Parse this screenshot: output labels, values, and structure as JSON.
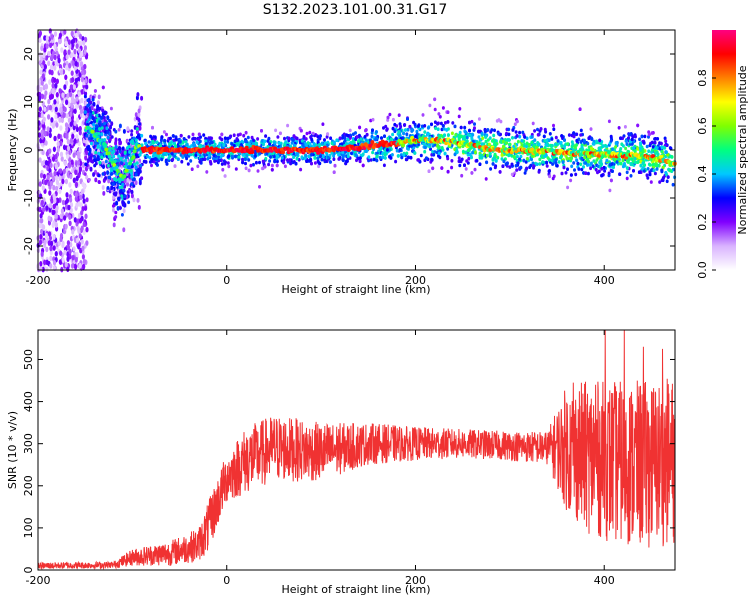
{
  "title": "S132.2023.101.00.31.G17",
  "chart_data": [
    {
      "type": "heatmap",
      "title": "S132.2023.101.00.31.G17",
      "xlabel": "Height of straight line (km)",
      "ylabel": "Frequency (Hz)",
      "xlim": [
        -200,
        475
      ],
      "ylim": [
        -25,
        25
      ],
      "x_ticks": [
        "-200",
        "0",
        "200",
        "400"
      ],
      "y_ticks": [
        "-20",
        "-10",
        "0",
        "10",
        "20"
      ],
      "colorbar": {
        "label": "Normalized spectral amplitude",
        "range": [
          0,
          1
        ],
        "ticks": [
          "0.0",
          "0.2",
          "0.4",
          "0.6",
          "0.8"
        ],
        "colors": [
          "#ffffff",
          "#d9b3ff",
          "#8000ff",
          "#0000ff",
          "#00c8ff",
          "#00ff80",
          "#80ff00",
          "#ffff00",
          "#ff8000",
          "#ff0000",
          "#ff0080"
        ]
      },
      "ridge": {
        "x": [
          -150,
          -140,
          -130,
          -120,
          -110,
          -105,
          -100,
          -95,
          -90,
          -80,
          -60,
          -40,
          -20,
          0,
          50,
          100,
          140,
          180,
          200,
          230,
          260,
          290,
          320,
          360,
          400,
          430,
          460,
          475
        ],
        "y": [
          5,
          3,
          1,
          -3,
          -6,
          -4,
          -2,
          1,
          0,
          0,
          0,
          0,
          0,
          0,
          0,
          0,
          0.5,
          1.5,
          2,
          2,
          1,
          0,
          0,
          -0.5,
          -1,
          -1,
          -2,
          -3
        ]
      }
    },
    {
      "type": "line",
      "xlabel": "Height of straight line (km)",
      "ylabel": "SNR (10 * v/v)",
      "xlim": [
        -200,
        475
      ],
      "ylim": [
        0,
        570
      ],
      "x_ticks": [
        "-200",
        "0",
        "200",
        "400"
      ],
      "y_ticks": [
        "0",
        "100",
        "200",
        "300",
        "400",
        "500"
      ],
      "color": "#f03232",
      "envelope": {
        "x": [
          -200,
          -120,
          -100,
          -60,
          -30,
          -20,
          0,
          20,
          50,
          100,
          150,
          200,
          250,
          300,
          340,
          360,
          380,
          400,
          440,
          475
        ],
        "mean": [
          10,
          12,
          30,
          40,
          60,
          100,
          220,
          260,
          290,
          280,
          300,
          300,
          300,
          295,
          290,
          290,
          270,
          260,
          250,
          260
        ],
        "spread": [
          8,
          8,
          20,
          30,
          40,
          60,
          60,
          80,
          80,
          70,
          50,
          40,
          35,
          35,
          40,
          150,
          180,
          190,
          200,
          200
        ]
      },
      "peak_values": [
        445,
        440,
        570,
        570,
        530,
        525
      ]
    }
  ]
}
